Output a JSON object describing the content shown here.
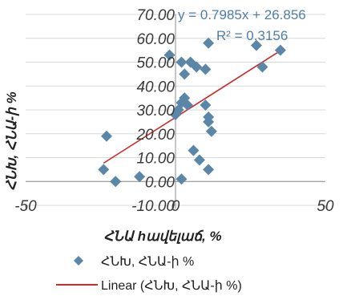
{
  "chart_data": {
    "type": "scatter",
    "xlabel": "ՀՆԱ hավելաճ, %",
    "ylabel": "ՀՆԽ, ՀՆԱ-ի %",
    "xlim": [
      -50,
      50
    ],
    "ylim": [
      -10,
      70
    ],
    "x_ticks": [
      "-50",
      "0",
      "50"
    ],
    "y_ticks": [
      "-10.00",
      "0.00",
      "10.00",
      "20.00",
      "30.00",
      "40.00",
      "50.00",
      "60.00",
      "70.00"
    ],
    "grid": true,
    "series": [
      {
        "name": "ՀՆԽ, ՀՆԱ-ի %",
        "marker": "diamond",
        "color": "#5a86a8",
        "points": [
          [
            -2,
            53
          ],
          [
            2,
            50
          ],
          [
            5,
            50
          ],
          [
            7,
            48
          ],
          [
            3,
            45
          ],
          [
            10,
            47
          ],
          [
            11,
            58
          ],
          [
            27,
            57
          ],
          [
            29,
            48
          ],
          [
            35,
            55
          ],
          [
            0,
            28
          ],
          [
            1,
            30
          ],
          [
            2,
            33
          ],
          [
            3,
            35
          ],
          [
            4,
            32
          ],
          [
            10,
            32
          ],
          [
            11,
            27
          ],
          [
            11,
            25
          ],
          [
            12,
            21
          ],
          [
            6,
            13
          ],
          [
            8,
            9
          ],
          [
            11,
            5
          ],
          [
            -23,
            19
          ],
          [
            -24,
            5
          ],
          [
            -20,
            0
          ],
          [
            -12,
            2
          ],
          [
            2,
            1
          ]
        ]
      }
    ],
    "trendline": {
      "name": "Linear (ՀՆԽ, ՀՆԱ-ի %)",
      "type": "linear",
      "slope": 0.7985,
      "intercept": 26.856,
      "x_range": [
        -24,
        36
      ],
      "color": "#cc2a2a",
      "equation_label": "y = 0.7985x + 26.856",
      "r2_label": "R² = 0.3156"
    },
    "legend": {
      "position": "bottom",
      "items": [
        "ՀՆԽ, ՀՆԱ-ի %",
        "Linear (ՀՆԽ, ՀՆԱ-ի %)"
      ]
    }
  }
}
